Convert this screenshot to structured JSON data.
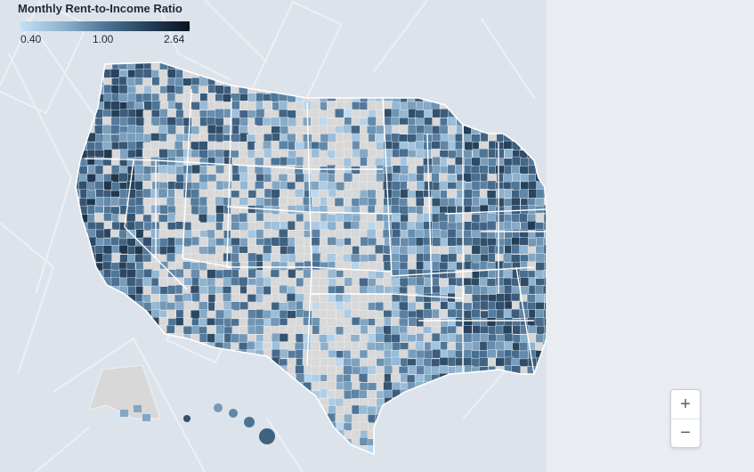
{
  "legend": {
    "title": "Monthly Rent-to-Income Ratio",
    "min_label": "0.40",
    "mid_label": "1.00",
    "max_label": "2.64",
    "min_value": 0.4,
    "mid_value": 1.0,
    "max_value": 2.64,
    "colors": [
      "#c3dff5",
      "#8fb3cf",
      "#4e7597",
      "#25405a",
      "#0a1420"
    ]
  },
  "map": {
    "background_color": "#dde3eb",
    "no_data_color": "#d8d8d8",
    "state_border_color": "#ffffff"
  },
  "zoom": {
    "in_label": "+",
    "out_label": "−"
  }
}
